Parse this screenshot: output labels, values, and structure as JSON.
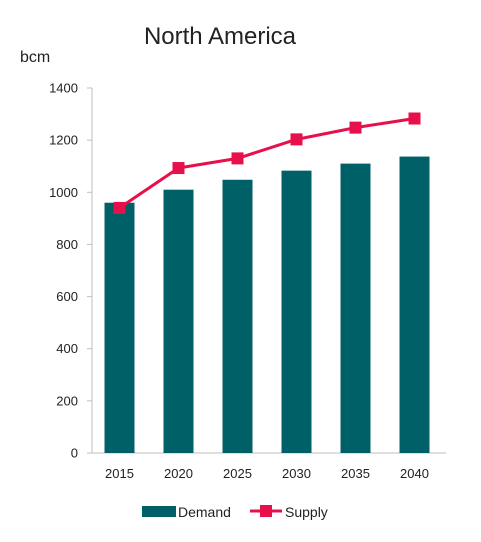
{
  "chart_data": {
    "type": "bar",
    "title": "North America",
    "ylabel": "bcm",
    "xlabel": "",
    "categories": [
      "2015",
      "2020",
      "2025",
      "2030",
      "2035",
      "2040"
    ],
    "ylim": [
      0,
      1400
    ],
    "yticks": [
      0,
      200,
      400,
      600,
      800,
      1000,
      1200,
      1400
    ],
    "grid": false,
    "legend_position": "bottom",
    "series": [
      {
        "name": "Demand",
        "type": "bar",
        "color": "#006068",
        "values": [
          960,
          1010,
          1048,
          1083,
          1110,
          1137
        ]
      },
      {
        "name": "Supply",
        "type": "line",
        "color": "#E8104A",
        "marker": "square",
        "values": [
          940,
          1093,
          1130,
          1203,
          1248,
          1283
        ]
      }
    ]
  }
}
